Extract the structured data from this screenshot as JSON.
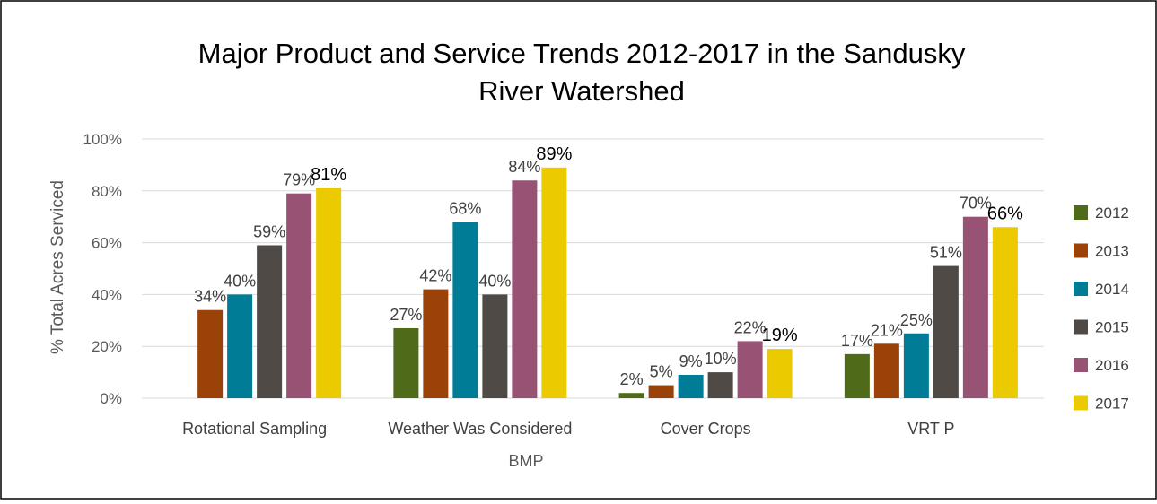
{
  "chart_data": {
    "type": "bar",
    "title": "Major Product and Service Trends 2012-2017 in the Sandusky River Watershed",
    "title_lines": [
      "Major Product and Service Trends 2012-2017 in the Sandusky",
      "River Watershed"
    ],
    "xlabel": "BMP",
    "ylabel": "% Total Acres Serviced",
    "ylim": [
      0,
      100
    ],
    "yticks": [
      0,
      20,
      40,
      60,
      80,
      100
    ],
    "ytick_labels": [
      "0%",
      "20%",
      "40%",
      "60%",
      "80%",
      "100%"
    ],
    "grid": true,
    "legend_position": "right",
    "categories": [
      "Rotational Sampling",
      "Weather Was Considered",
      "Cover Crops",
      "VRT P"
    ],
    "series": [
      {
        "name": "2012",
        "color": "#4f6b1a",
        "values": [
          null,
          27,
          2,
          17
        ],
        "labels": [
          "",
          "27%",
          "2%",
          "17%"
        ]
      },
      {
        "name": "2013",
        "color": "#9b4209",
        "values": [
          34,
          42,
          5,
          21
        ],
        "labels": [
          "34%",
          "42%",
          "5%",
          "21%"
        ]
      },
      {
        "name": "2014",
        "color": "#007c96",
        "values": [
          40,
          68,
          9,
          25
        ],
        "labels": [
          "40%",
          "68%",
          "9%",
          "25%"
        ]
      },
      {
        "name": "2015",
        "color": "#4f4a46",
        "values": [
          59,
          40,
          10,
          51
        ],
        "labels": [
          "59%",
          "40%",
          "10%",
          "51%"
        ]
      },
      {
        "name": "2016",
        "color": "#985274",
        "values": [
          79,
          84,
          22,
          70
        ],
        "labels": [
          "79%",
          "84%",
          "22%",
          "70%"
        ]
      },
      {
        "name": "2017",
        "color": "#ebca00",
        "values": [
          81,
          89,
          19,
          66
        ],
        "labels": [
          "81%",
          "89%",
          "19%",
          "66%"
        ]
      }
    ]
  }
}
